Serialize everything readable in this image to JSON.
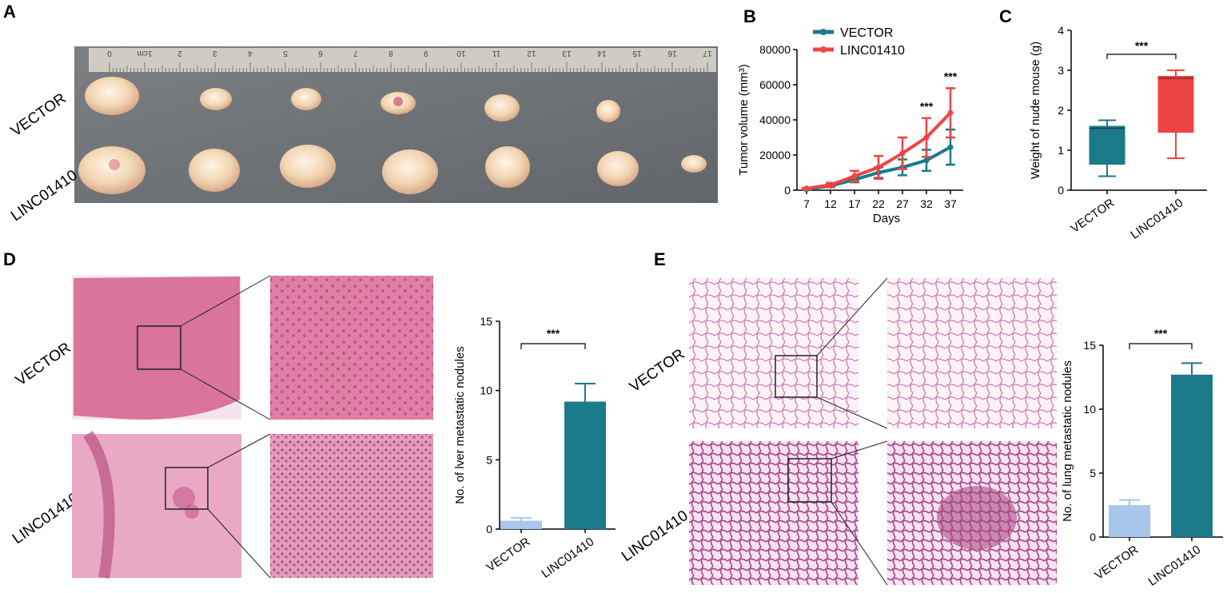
{
  "panels": {
    "A": {
      "letter": "A",
      "row_labels": [
        "VECTOR",
        "LINC01410"
      ],
      "ruler_numbers": [
        "0",
        "1cm",
        "2",
        "3",
        "4",
        "5",
        "6",
        "7",
        "8",
        "9",
        "10",
        "11",
        "12",
        "13",
        "14",
        "15",
        "16",
        "17"
      ],
      "colors": {
        "background": "#6f7377",
        "ruler": "#c9c7bd",
        "tumor": "#f1d8b8"
      }
    },
    "B": {
      "letter": "B"
    },
    "C": {
      "letter": "C"
    },
    "D": {
      "letter": "D",
      "row_labels": [
        "VECTOR",
        "LINC01410"
      ],
      "colors": {
        "tissue": "#d9749c"
      }
    },
    "E": {
      "letter": "E",
      "row_labels": [
        "VECTOR",
        "LINC01410"
      ],
      "colors": {
        "tissue": "#e6a0c6"
      }
    }
  },
  "chart_data": [
    {
      "id": "B",
      "type": "line",
      "xlabel": "Days",
      "ylabel": "Tumor volume (mm³)",
      "x": [
        7,
        12,
        17,
        22,
        27,
        32,
        37
      ],
      "ylim": [
        0,
        80000
      ],
      "yticks": [
        "0",
        "20000",
        "40000",
        "60000",
        "80000"
      ],
      "legend_position": "top-left",
      "significance": [
        {
          "x": 32,
          "text": "***"
        },
        {
          "x": 37,
          "text": "***"
        }
      ],
      "series": [
        {
          "name": "VECTOR",
          "color": "#1a7a8a",
          "values": [
            500,
            2500,
            6000,
            10000,
            13000,
            17000,
            24500
          ],
          "errors": [
            300,
            800,
            1500,
            3000,
            4500,
            6000,
            10000
          ]
        },
        {
          "name": "LINC01410",
          "color": "#ef4444",
          "values": [
            1000,
            3000,
            8000,
            13000,
            21000,
            30000,
            44000
          ],
          "errors": [
            400,
            1200,
            3000,
            6500,
            9000,
            11000,
            14000
          ]
        }
      ]
    },
    {
      "id": "C",
      "type": "box",
      "ylabel": "Weight of nude mouse (g)",
      "categories": [
        "VECTOR",
        "LINC01410"
      ],
      "ylim": [
        0,
        4
      ],
      "yticks": [
        "0",
        "1",
        "2",
        "3",
        "4"
      ],
      "significance": "***",
      "boxes": [
        {
          "category": "VECTOR",
          "min": 0.35,
          "q1": 0.65,
          "median": 1.55,
          "q3": 1.6,
          "max": 1.75,
          "color": "#1a7a8a"
        },
        {
          "category": "LINC01410",
          "min": 0.8,
          "q1": 1.45,
          "median": 2.8,
          "q3": 2.85,
          "max": 3.0,
          "color": "#ef4444"
        }
      ]
    },
    {
      "id": "D",
      "type": "bar",
      "ylabel": "No. of lver metastatic nodules",
      "categories": [
        "VECTOR",
        "LINC01410"
      ],
      "values": [
        0.6,
        9.2
      ],
      "errors": [
        0.2,
        1.3
      ],
      "colors": [
        "#a7c7ec",
        "#1a7a8a"
      ],
      "ylim": [
        0,
        15
      ],
      "yticks": [
        "0",
        "5",
        "10",
        "15"
      ],
      "significance": "***"
    },
    {
      "id": "E",
      "type": "bar",
      "ylabel": "No. of lung metastatic nodules",
      "categories": [
        "VECTOR",
        "LINC01410"
      ],
      "values": [
        2.5,
        12.7
      ],
      "errors": [
        0.4,
        0.9
      ],
      "colors": [
        "#a7c7ec",
        "#1a7a8a"
      ],
      "ylim": [
        0,
        15
      ],
      "yticks": [
        "0",
        "5",
        "10",
        "15"
      ],
      "significance": "***"
    }
  ]
}
